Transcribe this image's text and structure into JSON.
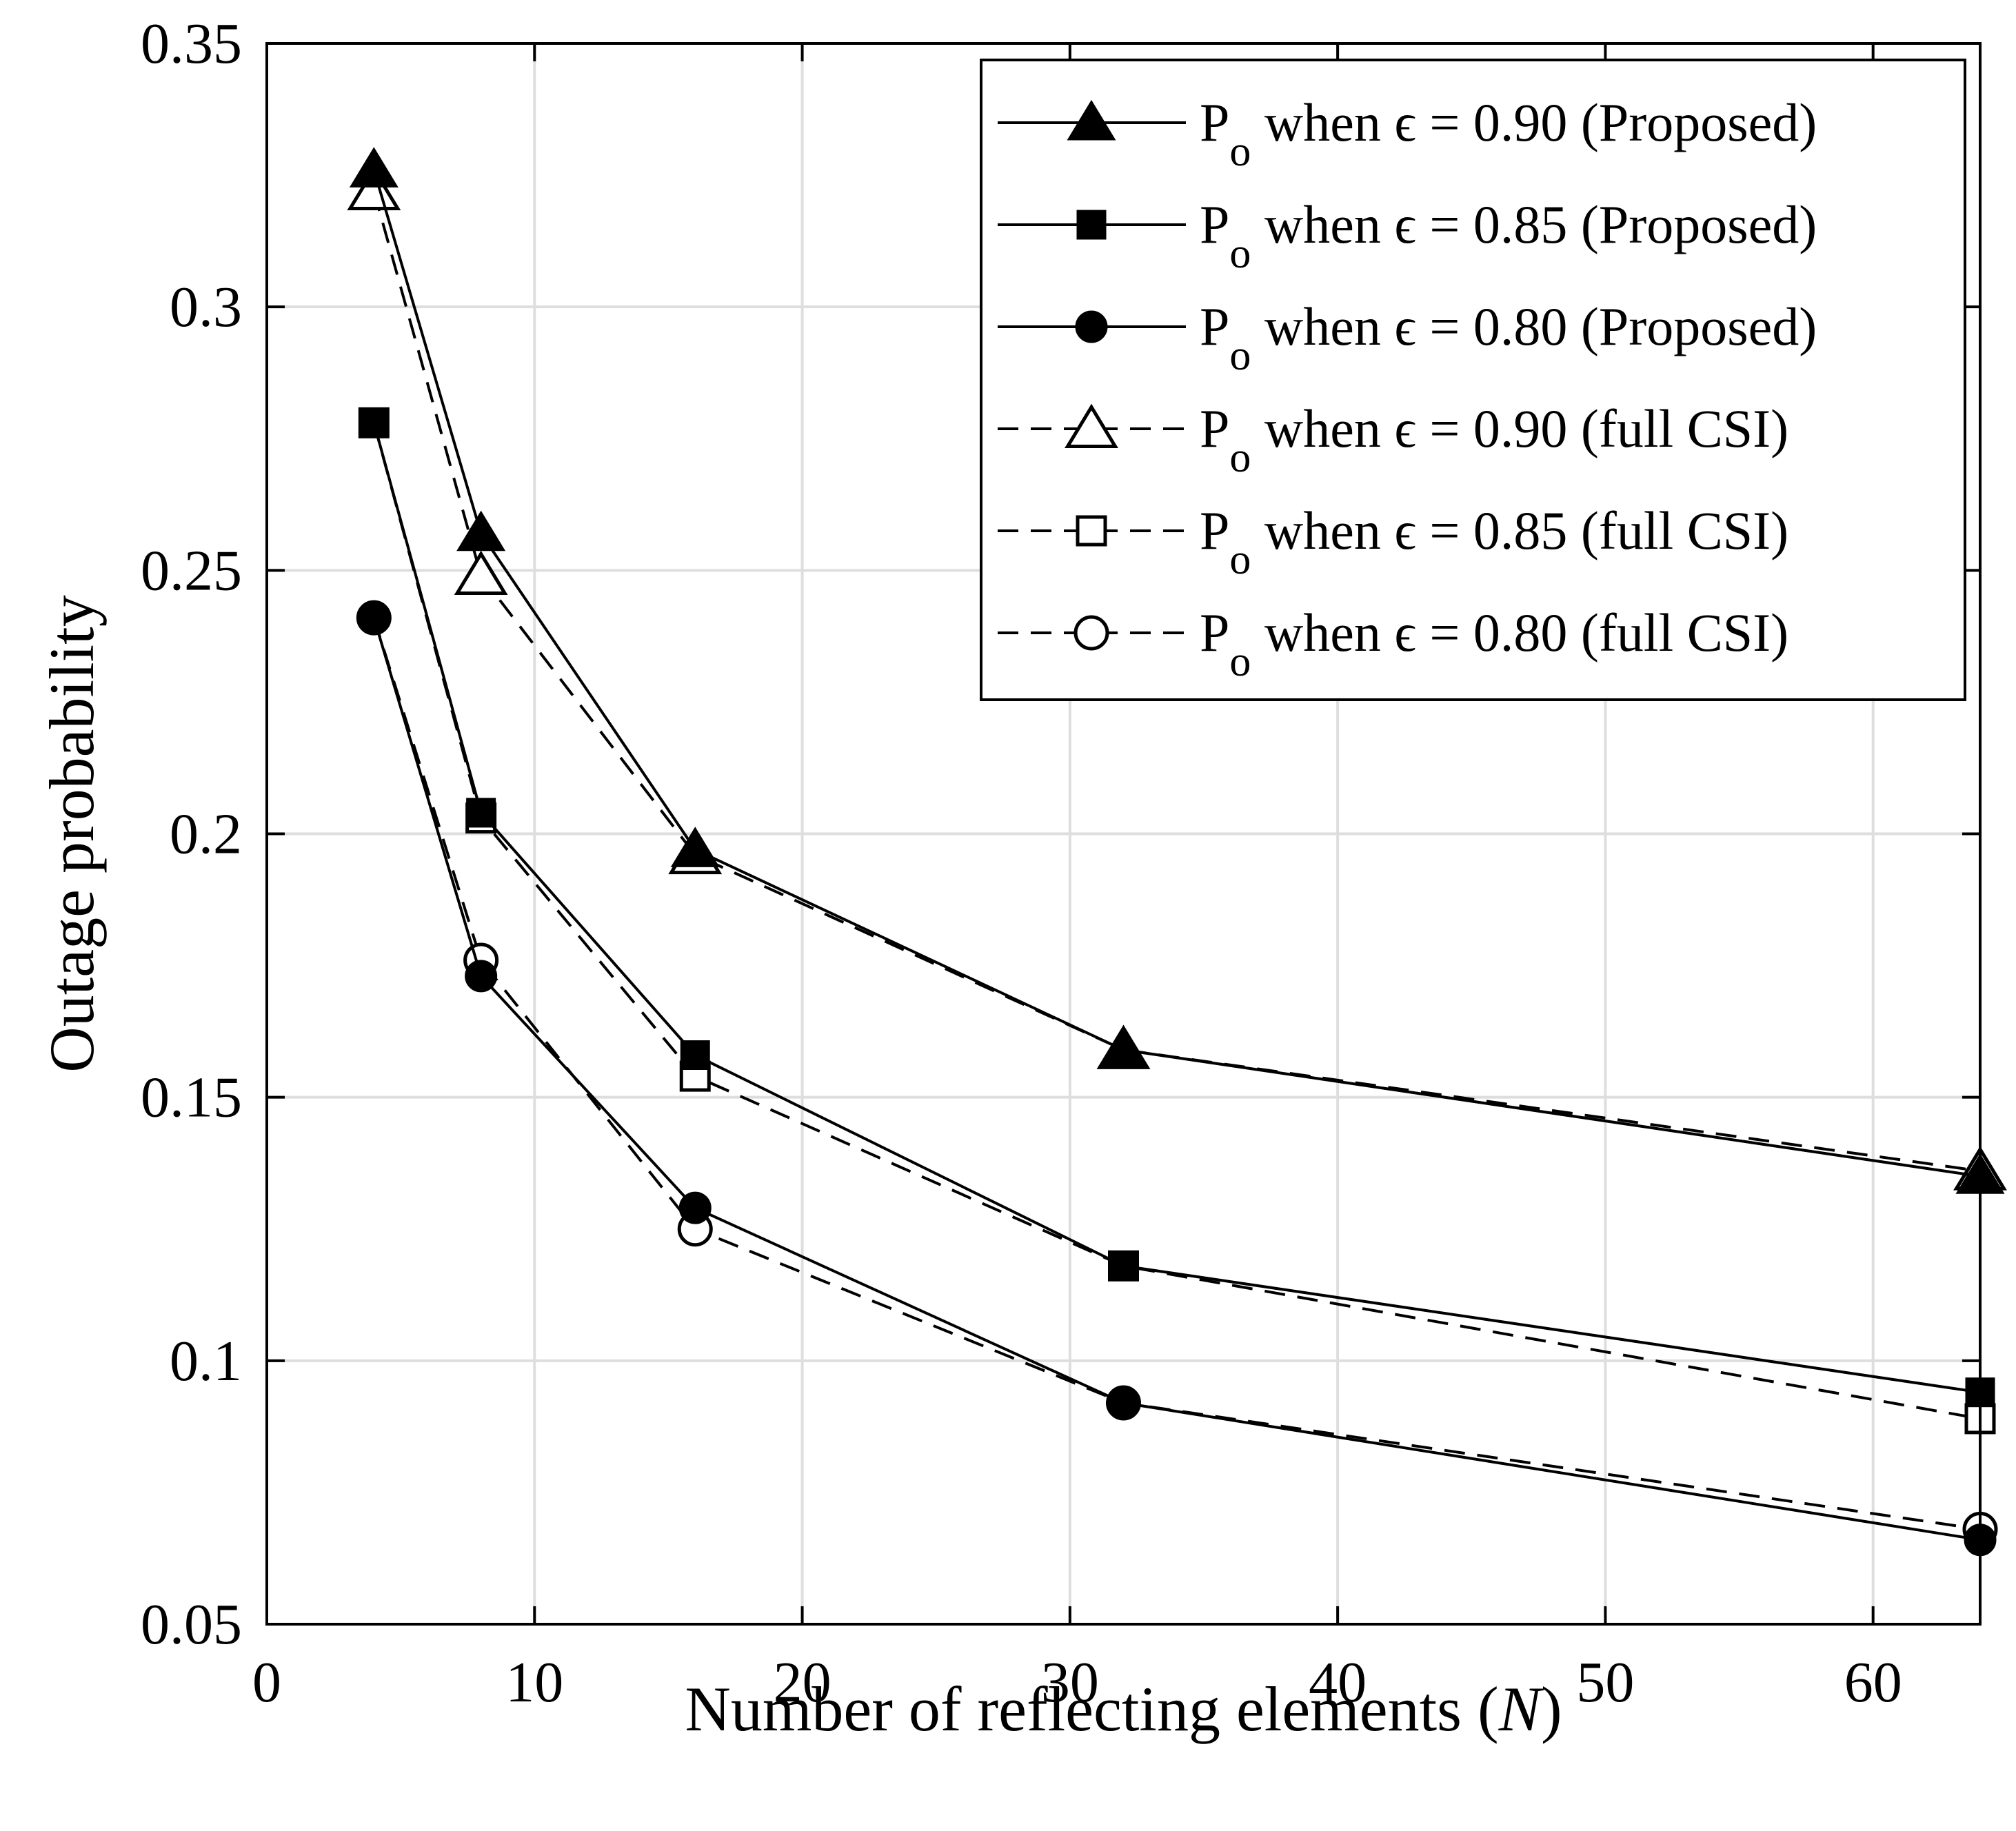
{
  "chart_data": {
    "type": "line",
    "title": "",
    "xlabel": "Number of reflecting elements (N)",
    "xlabel_prefix": "Number of reflecting elements (",
    "xlabel_var": "N",
    "xlabel_suffix": ")",
    "ylabel": "Outage probability",
    "xlim": [
      0,
      64
    ],
    "ylim": [
      0.05,
      0.35
    ],
    "xticks": [
      0,
      10,
      20,
      30,
      40,
      50,
      60
    ],
    "xtick_labels": [
      "0",
      "10",
      "20",
      "30",
      "40",
      "50",
      "60"
    ],
    "yticks": [
      0.05,
      0.1,
      0.15,
      0.2,
      0.25,
      0.3,
      0.35
    ],
    "ytick_labels": [
      "0.05",
      "0.1",
      "0.15",
      "0.2",
      "0.25",
      "0.3",
      "0.35"
    ],
    "grid": true,
    "legend_position": "top-right",
    "x": [
      4,
      8,
      16,
      32,
      64
    ],
    "series": [
      {
        "name": "Po when ϵ = 0.90 (Proposed)",
        "label_main": "P",
        "label_sub": "o",
        "label_rest": " when ϵ = 0.90 (Proposed)",
        "line": "solid",
        "marker": "triangle",
        "filled": true,
        "values": [
          0.326,
          0.257,
          0.197,
          0.159,
          0.135
        ]
      },
      {
        "name": "Po when ϵ = 0.85 (Proposed)",
        "label_main": "P",
        "label_sub": "o",
        "label_rest": " when ϵ = 0.85 (Proposed)",
        "line": "solid",
        "marker": "square",
        "filled": true,
        "values": [
          0.278,
          0.204,
          0.158,
          0.118,
          0.094
        ]
      },
      {
        "name": "Po when ϵ = 0.80  (Proposed)",
        "label_main": "P",
        "label_sub": "o",
        "label_rest": " when ϵ = 0.80  (Proposed)",
        "line": "solid",
        "marker": "circle",
        "filled": true,
        "values": [
          0.241,
          0.173,
          0.129,
          0.092,
          0.066
        ]
      },
      {
        "name": "Po when ϵ = 0.90 (full CSI)",
        "label_main": "P",
        "label_sub": "o",
        "label_rest": " when ϵ = 0.90 (full CSI)",
        "line": "dashed",
        "marker": "triangle",
        "filled": false,
        "values": [
          0.322,
          0.249,
          0.196,
          0.159,
          0.136
        ]
      },
      {
        "name": "Po when ϵ = 0.85 (full CSI)",
        "label_main": "P",
        "label_sub": "o",
        "label_rest": " when ϵ = 0.85 (full CSI)",
        "line": "dashed",
        "marker": "square",
        "filled": false,
        "values": [
          0.278,
          0.203,
          0.154,
          0.118,
          0.089
        ]
      },
      {
        "name": "Po when ϵ = 0.80 (full CSI)",
        "label_main": "P",
        "label_sub": "o",
        "label_rest": " when ϵ = 0.80 (full CSI)",
        "line": "dashed",
        "marker": "circle",
        "filled": false,
        "values": [
          0.241,
          0.176,
          0.125,
          0.092,
          0.068
        ]
      }
    ]
  },
  "colors": {
    "line": "#000000",
    "grid": "#dedede",
    "background": "#ffffff"
  }
}
